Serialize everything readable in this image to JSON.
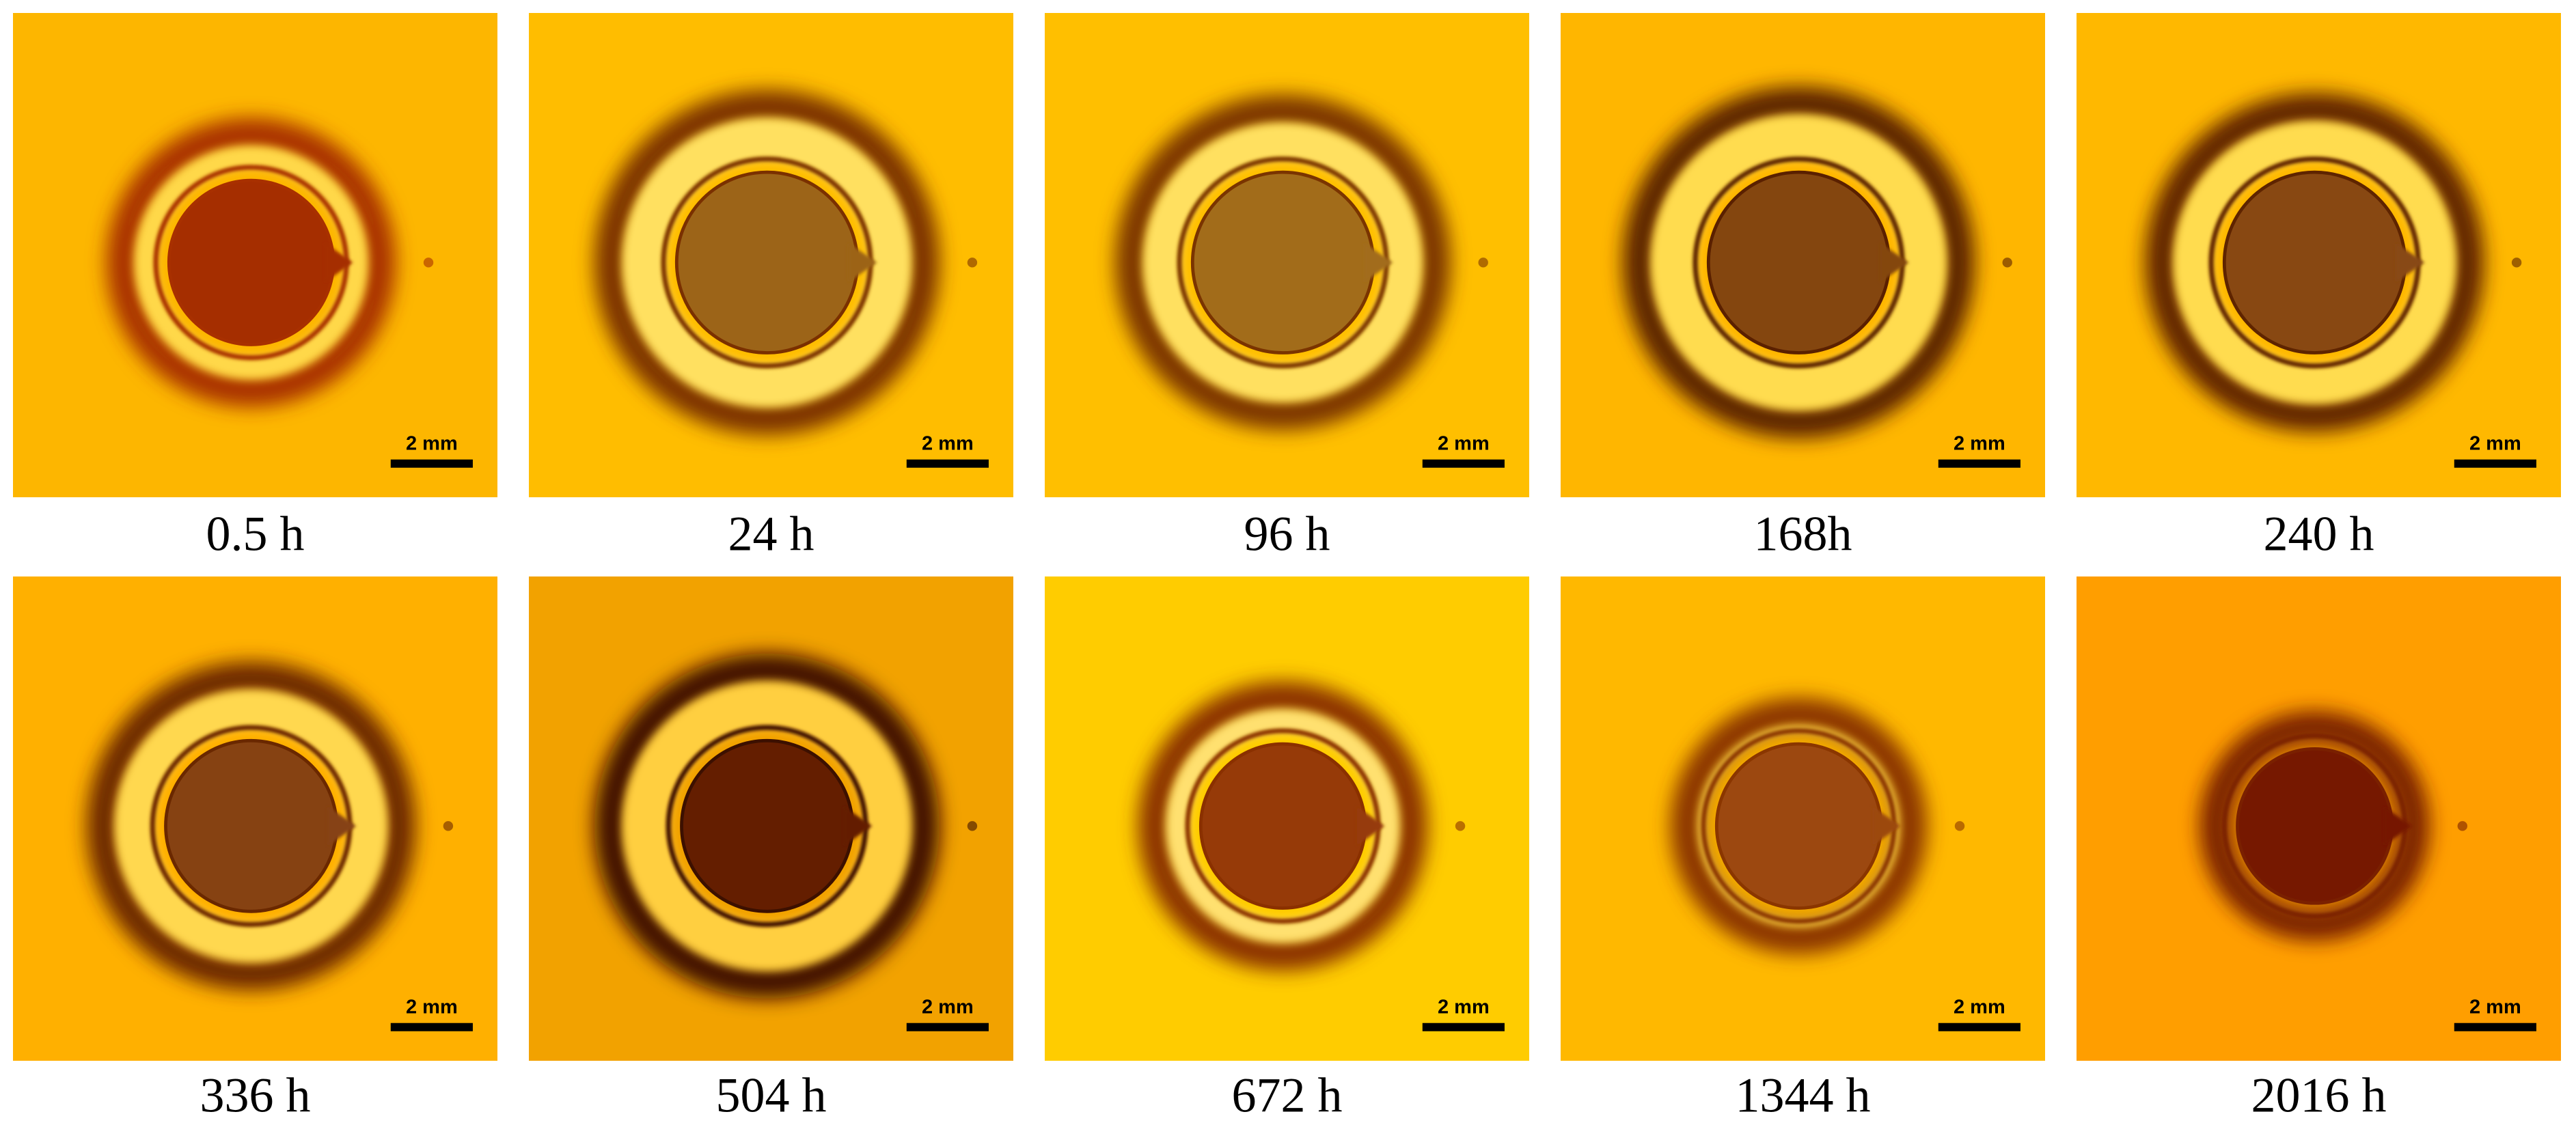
{
  "panels": [
    {
      "label": "0.5 h",
      "scale_bar": "2 mm"
    },
    {
      "label": "24 h",
      "scale_bar": "2 mm"
    },
    {
      "label": "96 h",
      "scale_bar": "2 mm"
    },
    {
      "label": "168h",
      "scale_bar": "2 mm"
    },
    {
      "label": "240 h",
      "scale_bar": "2 mm"
    },
    {
      "label": "336 h",
      "scale_bar": "2 mm"
    },
    {
      "label": "504 h",
      "scale_bar": "2 mm"
    },
    {
      "label": "672 h",
      "scale_bar": "2 mm"
    },
    {
      "label": "1344 h",
      "scale_bar": "2 mm"
    },
    {
      "label": "2016 h",
      "scale_bar": "2 mm"
    }
  ]
}
